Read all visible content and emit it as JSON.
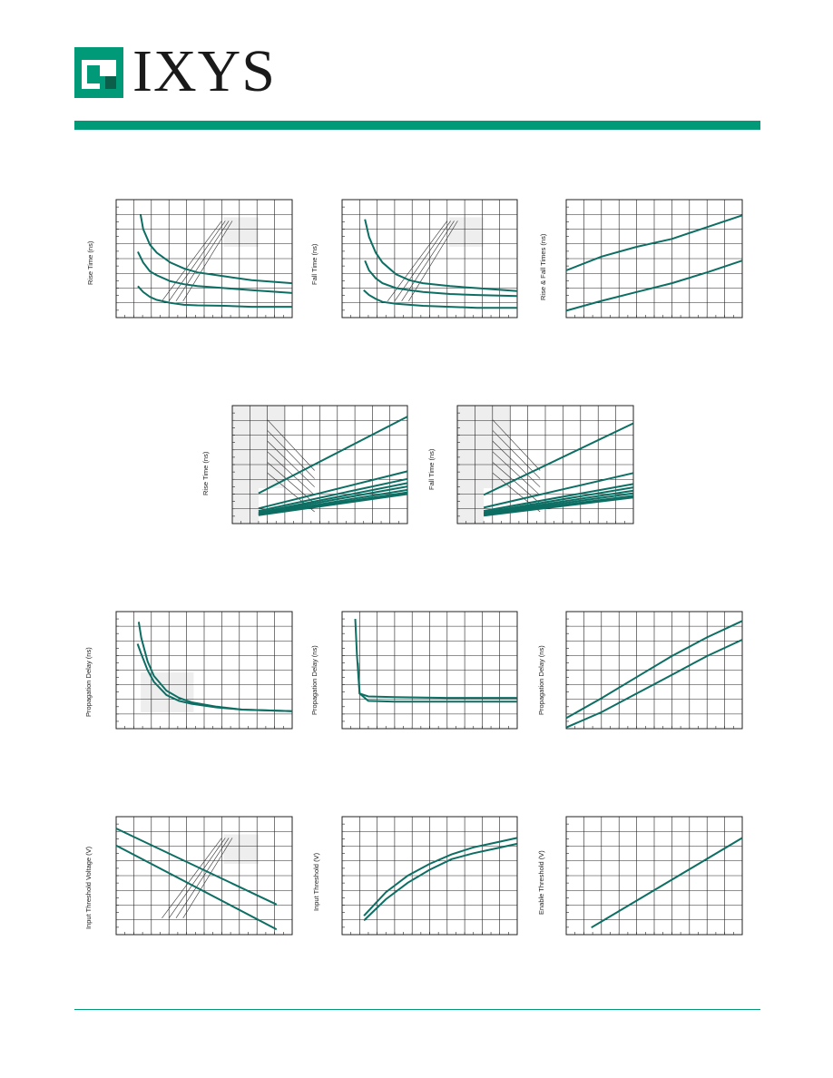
{
  "brand": {
    "name": "IXYS",
    "accent": "#009a78",
    "curve": "#0d6e63",
    "shade": "#eeeeee",
    "grid": "#222222"
  },
  "chart_data": [
    {
      "id": "c1",
      "type": "line",
      "ylabel": "Rise Time (ns)",
      "xlim": [
        0,
        13
      ],
      "ylim": [
        0,
        12
      ],
      "hatch": "box",
      "series": [
        {
          "x": [
            1.8,
            2,
            2.5,
            3,
            4,
            5,
            6,
            8,
            10,
            13
          ],
          "y": [
            10.5,
            9,
            7.4,
            6.6,
            5.6,
            5,
            4.6,
            4.2,
            3.8,
            3.5
          ]
        },
        {
          "x": [
            1.6,
            2,
            2.5,
            3,
            4,
            5,
            6,
            8,
            10,
            13
          ],
          "y": [
            6.7,
            5.6,
            4.7,
            4.3,
            3.7,
            3.4,
            3.2,
            3,
            2.8,
            2.5
          ]
        },
        {
          "x": [
            1.6,
            2,
            2.5,
            3,
            4,
            5,
            6,
            8,
            10,
            13
          ],
          "y": [
            3.2,
            2.6,
            2.1,
            1.8,
            1.5,
            1.3,
            1.25,
            1.2,
            1.1,
            1.1
          ]
        }
      ]
    },
    {
      "id": "c2",
      "type": "line",
      "ylabel": "Fall Time (ns)",
      "xlim": [
        0,
        13
      ],
      "ylim": [
        0,
        12
      ],
      "hatch": "box",
      "series": [
        {
          "x": [
            1.7,
            2,
            2.5,
            3,
            4,
            5,
            6,
            8,
            10,
            13
          ],
          "y": [
            10,
            8.2,
            6.6,
            5.6,
            4.4,
            3.8,
            3.5,
            3.2,
            3,
            2.7
          ]
        },
        {
          "x": [
            1.7,
            2,
            2.5,
            3,
            4,
            5,
            6,
            8,
            10,
            13
          ],
          "y": [
            5.8,
            4.8,
            4,
            3.5,
            3,
            2.8,
            2.6,
            2.4,
            2.3,
            2.2
          ]
        },
        {
          "x": [
            1.6,
            2,
            2.5,
            3,
            4,
            5,
            6,
            8,
            10,
            13
          ],
          "y": [
            2.8,
            2.3,
            1.9,
            1.6,
            1.4,
            1.3,
            1.2,
            1.1,
            1,
            1
          ]
        }
      ]
    },
    {
      "id": "c3",
      "type": "line",
      "ylabel": "Rise & Fall Times (ns)",
      "xlim": [
        0,
        10
      ],
      "ylim": [
        0,
        6
      ],
      "series": [
        {
          "x": [
            0,
            2,
            4,
            6,
            8,
            10
          ],
          "y": [
            2.4,
            3.1,
            3.6,
            4,
            4.6,
            5.2
          ]
        },
        {
          "x": [
            0,
            2,
            4,
            6,
            8,
            10
          ],
          "y": [
            0.35,
            0.85,
            1.3,
            1.75,
            2.3,
            2.9
          ]
        }
      ]
    },
    {
      "id": "c4",
      "type": "line",
      "ylabel": "Rise Time (ns)",
      "xlim": [
        0,
        10
      ],
      "ylim": [
        0,
        14
      ],
      "hatch": "step",
      "series": [
        {
          "x": [
            1.5,
            10
          ],
          "y": [
            3.6,
            12.7
          ]
        },
        {
          "x": [
            1.5,
            10
          ],
          "y": [
            1.8,
            6.2
          ]
        },
        {
          "x": [
            1.5,
            10
          ],
          "y": [
            1.5,
            5.3
          ]
        },
        {
          "x": [
            1.5,
            10
          ],
          "y": [
            1.3,
            4.8
          ]
        },
        {
          "x": [
            1.5,
            10
          ],
          "y": [
            1.2,
            4.4
          ]
        },
        {
          "x": [
            1.5,
            10
          ],
          "y": [
            1.1,
            4.0
          ]
        },
        {
          "x": [
            1.5,
            10
          ],
          "y": [
            1.05,
            3.7
          ]
        },
        {
          "x": [
            1.5,
            10
          ],
          "y": [
            1.0,
            3.5
          ]
        }
      ]
    },
    {
      "id": "c5",
      "type": "line",
      "ylabel": "Fall Time (ns)",
      "xlim": [
        0,
        10
      ],
      "ylim": [
        0,
        14
      ],
      "hatch": "step",
      "series": [
        {
          "x": [
            1.5,
            10
          ],
          "y": [
            3.4,
            11.9
          ]
        },
        {
          "x": [
            1.5,
            10
          ],
          "y": [
            1.9,
            6.0
          ]
        },
        {
          "x": [
            1.5,
            10
          ],
          "y": [
            1.5,
            4.7
          ]
        },
        {
          "x": [
            1.5,
            10
          ],
          "y": [
            1.3,
            4.3
          ]
        },
        {
          "x": [
            1.5,
            10
          ],
          "y": [
            1.2,
            3.9
          ]
        },
        {
          "x": [
            1.5,
            10
          ],
          "y": [
            1.1,
            3.6
          ]
        },
        {
          "x": [
            1.5,
            10
          ],
          "y": [
            1.0,
            3.3
          ]
        },
        {
          "x": [
            1.5,
            10
          ],
          "y": [
            0.95,
            3.1
          ]
        }
      ]
    },
    {
      "id": "c6",
      "type": "line",
      "ylabel": "Propagation Delay (ns)",
      "xlim": [
        0,
        14
      ],
      "ylim": [
        0,
        8
      ],
      "hatch": "boxlow",
      "series": [
        {
          "x": [
            1.8,
            2,
            2.5,
            3,
            4,
            5,
            6,
            8,
            10,
            14
          ],
          "y": [
            7.3,
            6.2,
            4.6,
            3.6,
            2.6,
            2.1,
            1.8,
            1.5,
            1.3,
            1.2
          ]
        },
        {
          "x": [
            1.7,
            2,
            2.5,
            3,
            4,
            5,
            6,
            8,
            10,
            14
          ],
          "y": [
            5.8,
            5.1,
            4,
            3.2,
            2.3,
            1.9,
            1.7,
            1.45,
            1.3,
            1.2
          ]
        }
      ]
    },
    {
      "id": "c7",
      "type": "line",
      "ylabel": "Propagation Delay (ns)",
      "xlim": [
        0,
        10
      ],
      "ylim": [
        0,
        8
      ],
      "series": [
        {
          "x": [
            0.75,
            0.85,
            1,
            1.5,
            3,
            6,
            10
          ],
          "y": [
            7.5,
            5,
            2.4,
            2.2,
            2.15,
            2.1,
            2.1
          ]
        },
        {
          "x": [
            0.9,
            1,
            1.5,
            3,
            6,
            10
          ],
          "y": [
            4.5,
            2.4,
            1.9,
            1.85,
            1.85,
            1.85
          ]
        }
      ]
    },
    {
      "id": "c8",
      "type": "line",
      "ylabel": "Propagation Delay (ns)",
      "xlim": [
        0,
        10
      ],
      "ylim": [
        0,
        5
      ],
      "series": [
        {
          "x": [
            0,
            2,
            4,
            6,
            8,
            10
          ],
          "y": [
            0.45,
            1.3,
            2.2,
            3.1,
            3.9,
            4.6
          ]
        },
        {
          "x": [
            0,
            2,
            4,
            6,
            8,
            10
          ],
          "y": [
            0.05,
            0.7,
            1.5,
            2.3,
            3.1,
            3.8
          ]
        }
      ]
    },
    {
      "id": "c9",
      "type": "line",
      "ylabel": "Input Threshold Voltage (V)",
      "xlim": [
        0,
        9
      ],
      "ylim": [
        0,
        9
      ],
      "hatch": "box",
      "series": [
        {
          "x": [
            0,
            8.2
          ],
          "y": [
            8.1,
            2.3
          ]
        },
        {
          "x": [
            0,
            8.2
          ],
          "y": [
            6.8,
            0.4
          ]
        }
      ]
    },
    {
      "id": "c10",
      "type": "line",
      "ylabel": "Input Threshold (V)",
      "xlim": [
        0,
        8
      ],
      "ylim": [
        0,
        5
      ],
      "series": [
        {
          "x": [
            1,
            2,
            3,
            4,
            5,
            6,
            7,
            8
          ],
          "y": [
            0.8,
            1.8,
            2.5,
            3.0,
            3.4,
            3.7,
            3.9,
            4.1
          ]
        },
        {
          "x": [
            1,
            2,
            3,
            4,
            5,
            6,
            7,
            8
          ],
          "y": [
            0.6,
            1.5,
            2.2,
            2.75,
            3.2,
            3.45,
            3.65,
            3.85
          ]
        }
      ]
    },
    {
      "id": "c11",
      "type": "line",
      "ylabel": "Enable Threshold (V)",
      "xlim": [
        0,
        7
      ],
      "ylim": [
        0,
        5
      ],
      "series": [
        {
          "x": [
            1,
            7
          ],
          "y": [
            0.3,
            4.1
          ]
        }
      ]
    }
  ]
}
